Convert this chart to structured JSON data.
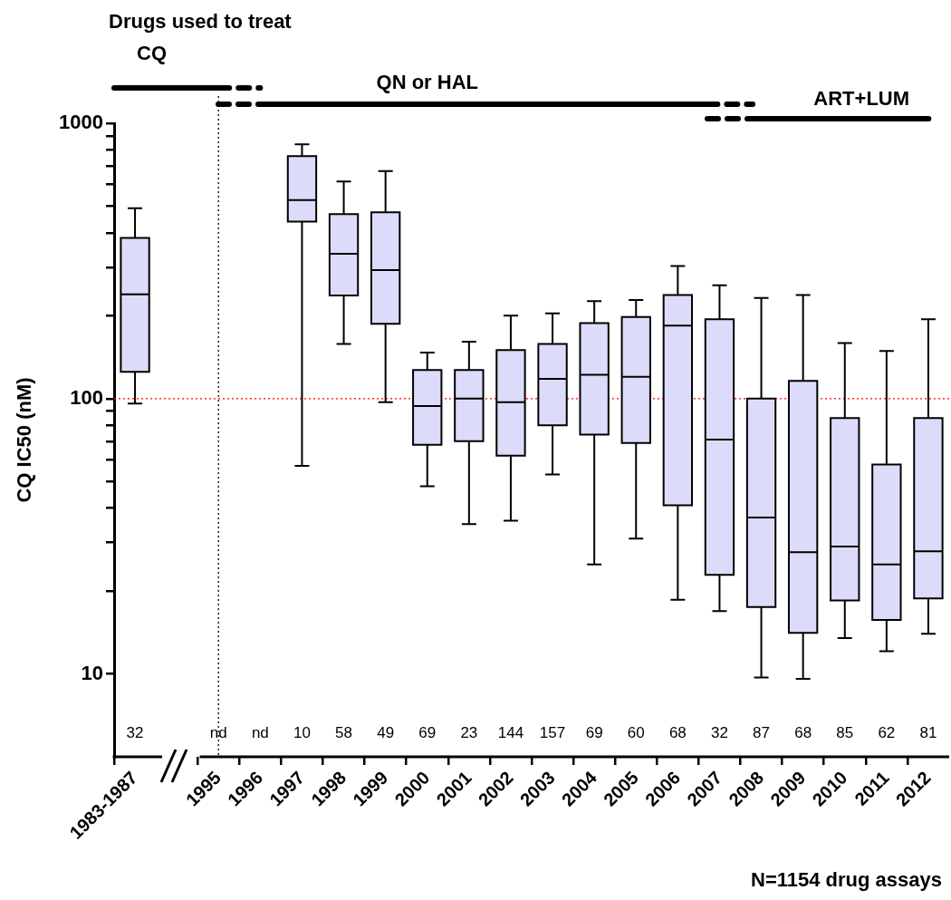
{
  "chart_data": {
    "type": "box",
    "title": "Drugs used to treat",
    "ylabel": "CQ IC50 (nM)",
    "categories": [
      "1983-1987",
      null,
      "1995",
      "1996",
      "1997",
      "1998",
      "1999",
      "2000",
      "2001",
      "2002",
      "2003",
      "2004",
      "2005",
      "2006",
      "2007",
      "2008",
      "2009",
      "2010",
      "2011",
      "2012"
    ],
    "series": [
      {
        "color": "#dcdcfa",
        "boxes": [
          {
            "low": 96,
            "q1": 125,
            "median": 239,
            "q3": 383,
            "high": 491
          },
          null,
          null,
          null,
          {
            "low": 57,
            "q1": 439,
            "median": 526,
            "q3": 760,
            "high": 838
          },
          {
            "low": 158,
            "q1": 237,
            "median": 336,
            "q3": 468,
            "high": 614
          },
          {
            "low": 97,
            "q1": 187,
            "median": 293,
            "q3": 475,
            "high": 671
          },
          {
            "low": 48,
            "q1": 68,
            "median": 94,
            "q3": 127,
            "high": 147
          },
          {
            "low": 35,
            "q1": 70,
            "median": 100,
            "q3": 127,
            "high": 161
          },
          {
            "low": 36,
            "q1": 62,
            "median": 97,
            "q3": 150,
            "high": 200
          },
          {
            "low": 53,
            "q1": 80,
            "median": 118,
            "q3": 158,
            "high": 204
          },
          {
            "low": 25,
            "q1": 74,
            "median": 122,
            "q3": 188,
            "high": 226
          },
          {
            "low": 31,
            "q1": 69,
            "median": 120,
            "q3": 198,
            "high": 228
          },
          {
            "low": 18.6,
            "q1": 41,
            "median": 184,
            "q3": 238,
            "high": 303
          },
          {
            "low": 16.9,
            "q1": 22.9,
            "median": 71,
            "q3": 194,
            "high": 258
          },
          {
            "low": 9.7,
            "q1": 17.5,
            "median": 37,
            "q3": 100,
            "high": 232
          },
          {
            "low": 9.6,
            "q1": 14.1,
            "median": 27.7,
            "q3": 116,
            "high": 238
          },
          {
            "low": 13.5,
            "q1": 18.5,
            "median": 29,
            "q3": 85,
            "high": 159
          },
          {
            "low": 12.1,
            "q1": 15.7,
            "median": 25,
            "q3": 57.6,
            "high": 149
          },
          {
            "low": 14,
            "q1": 18.8,
            "median": 27.9,
            "q3": 85,
            "high": 194
          }
        ]
      }
    ],
    "log": "y",
    "ylim": [
      5,
      1000
    ],
    "yticks": [
      10,
      {
        "value": 20,
        "label": null
      },
      {
        "value": 30,
        "label": null
      },
      {
        "value": 40,
        "label": null
      },
      {
        "value": 50,
        "label": null
      },
      {
        "value": 60,
        "label": null
      },
      {
        "value": 70,
        "label": null
      },
      {
        "value": 80,
        "label": null
      },
      {
        "value": 90,
        "label": null
      },
      100,
      {
        "value": 200,
        "label": null
      },
      {
        "value": 300,
        "label": null
      },
      {
        "value": 400,
        "label": null
      },
      {
        "value": 500,
        "label": null
      },
      {
        "value": 600,
        "label": null
      },
      {
        "value": 700,
        "label": null
      },
      {
        "value": 800,
        "label": null
      },
      {
        "value": 900,
        "label": null
      },
      1000
    ],
    "grid": false,
    "legend": false,
    "ref_lines": [
      {
        "axis": "y",
        "value": 100,
        "color": "#ff0000",
        "line_style": "dotted"
      },
      {
        "axis": "x",
        "value": "1995",
        "color": "#000000",
        "line_style": "dotted"
      }
    ],
    "annotations": [
      "CQ",
      "QN or HAL",
      "ART+LUM",
      "32",
      "nd",
      "nd",
      "10",
      "58",
      "49",
      "69",
      "23",
      "144",
      "157",
      "69",
      "60",
      "68",
      "32",
      "87",
      "68",
      "85",
      "62",
      "81",
      "N=1154 drug assays"
    ]
  }
}
